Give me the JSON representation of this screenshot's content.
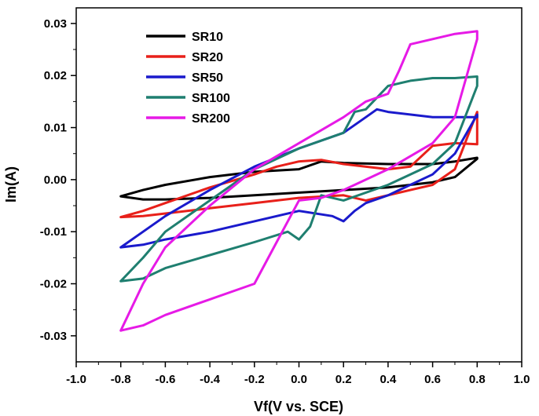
{
  "chart_data": {
    "type": "line",
    "title": "",
    "xlabel": "Vf(V vs. SCE)",
    "ylabel": "Im(A)",
    "xlim": [
      -1.0,
      1.0
    ],
    "ylim": [
      -0.035,
      0.033
    ],
    "x_ticks": [
      "-1.0",
      "-0.8",
      "-0.6",
      "-0.4",
      "-0.2",
      "0.0",
      "0.2",
      "0.4",
      "0.6",
      "0.8",
      "1.0"
    ],
    "y_ticks": [
      "0.03",
      "0.02",
      "0.01",
      "0.00",
      "-0.01",
      "-0.02",
      "-0.03"
    ],
    "grid": false,
    "legend_position": "top-left",
    "series": [
      {
        "name": "SR10",
        "color": "#000000",
        "points": [
          [
            -0.8,
            -0.0032
          ],
          [
            -0.7,
            -0.002
          ],
          [
            -0.6,
            -0.001
          ],
          [
            -0.4,
            0.0005
          ],
          [
            -0.2,
            0.0015
          ],
          [
            0.0,
            0.002
          ],
          [
            0.1,
            0.0035
          ],
          [
            0.2,
            0.0032
          ],
          [
            0.4,
            0.003
          ],
          [
            0.6,
            0.003
          ],
          [
            0.7,
            0.0035
          ],
          [
            0.8,
            0.0042
          ],
          [
            0.8,
            0.004
          ],
          [
            0.7,
            0.0005
          ],
          [
            0.6,
            -0.0005
          ],
          [
            0.4,
            -0.0015
          ],
          [
            0.2,
            -0.002
          ],
          [
            0.0,
            -0.0025
          ],
          [
            -0.2,
            -0.003
          ],
          [
            -0.4,
            -0.0035
          ],
          [
            -0.6,
            -0.0038
          ],
          [
            -0.7,
            -0.0038
          ],
          [
            -0.8,
            -0.0032
          ]
        ]
      },
      {
        "name": "SR20",
        "color": "#e8201a",
        "points": [
          [
            -0.8,
            -0.0072
          ],
          [
            -0.7,
            -0.006
          ],
          [
            -0.6,
            -0.0045
          ],
          [
            -0.4,
            -0.0015
          ],
          [
            -0.2,
            0.001
          ],
          [
            -0.1,
            0.0025
          ],
          [
            0.0,
            0.0035
          ],
          [
            0.1,
            0.0038
          ],
          [
            0.2,
            0.003
          ],
          [
            0.4,
            0.002
          ],
          [
            0.5,
            0.0025
          ],
          [
            0.6,
            0.0065
          ],
          [
            0.7,
            0.007
          ],
          [
            0.8,
            0.0068
          ],
          [
            0.8,
            0.013
          ],
          [
            0.7,
            0.002
          ],
          [
            0.6,
            -0.001
          ],
          [
            0.5,
            -0.002
          ],
          [
            0.3,
            -0.004
          ],
          [
            0.2,
            -0.003
          ],
          [
            0.0,
            -0.0035
          ],
          [
            -0.2,
            -0.0045
          ],
          [
            -0.4,
            -0.0055
          ],
          [
            -0.6,
            -0.0065
          ],
          [
            -0.7,
            -0.007
          ],
          [
            -0.8,
            -0.0072
          ]
        ]
      },
      {
        "name": "SR50",
        "color": "#1a1acc",
        "points": [
          [
            -0.8,
            -0.013
          ],
          [
            -0.7,
            -0.01
          ],
          [
            -0.6,
            -0.007
          ],
          [
            -0.4,
            -0.002
          ],
          [
            -0.2,
            0.0025
          ],
          [
            0.0,
            0.006
          ],
          [
            0.2,
            0.009
          ],
          [
            0.3,
            0.012
          ],
          [
            0.35,
            0.0135
          ],
          [
            0.4,
            0.013
          ],
          [
            0.6,
            0.012
          ],
          [
            0.8,
            0.012
          ],
          [
            0.8,
            0.0125
          ],
          [
            0.7,
            0.005
          ],
          [
            0.6,
            0.001
          ],
          [
            0.4,
            -0.003
          ],
          [
            0.3,
            -0.0045
          ],
          [
            0.25,
            -0.006
          ],
          [
            0.2,
            -0.008
          ],
          [
            0.15,
            -0.007
          ],
          [
            0.0,
            -0.006
          ],
          [
            -0.2,
            -0.008
          ],
          [
            -0.4,
            -0.01
          ],
          [
            -0.6,
            -0.0115
          ],
          [
            -0.7,
            -0.0125
          ],
          [
            -0.8,
            -0.013
          ]
        ]
      },
      {
        "name": "SR100",
        "color": "#1f7f70",
        "points": [
          [
            -0.8,
            -0.0195
          ],
          [
            -0.7,
            -0.015
          ],
          [
            -0.6,
            -0.01
          ],
          [
            -0.4,
            -0.004
          ],
          [
            -0.2,
            0.002
          ],
          [
            0.0,
            0.006
          ],
          [
            0.2,
            0.009
          ],
          [
            0.25,
            0.013
          ],
          [
            0.3,
            0.0135
          ],
          [
            0.4,
            0.018
          ],
          [
            0.5,
            0.019
          ],
          [
            0.6,
            0.0195
          ],
          [
            0.7,
            0.0195
          ],
          [
            0.8,
            0.0198
          ],
          [
            0.8,
            0.018
          ],
          [
            0.7,
            0.007
          ],
          [
            0.6,
            0.003
          ],
          [
            0.4,
            -0.001
          ],
          [
            0.2,
            -0.004
          ],
          [
            0.1,
            -0.003
          ],
          [
            0.05,
            -0.009
          ],
          [
            0.0,
            -0.0115
          ],
          [
            -0.05,
            -0.01
          ],
          [
            -0.2,
            -0.012
          ],
          [
            -0.4,
            -0.0145
          ],
          [
            -0.6,
            -0.017
          ],
          [
            -0.7,
            -0.019
          ],
          [
            -0.8,
            -0.0195
          ]
        ]
      },
      {
        "name": "SR200",
        "color": "#e61ae6",
        "points": [
          [
            -0.8,
            -0.029
          ],
          [
            -0.7,
            -0.02
          ],
          [
            -0.6,
            -0.013
          ],
          [
            -0.4,
            -0.005
          ],
          [
            -0.2,
            0.002
          ],
          [
            0.0,
            0.007
          ],
          [
            0.2,
            0.012
          ],
          [
            0.3,
            0.015
          ],
          [
            0.4,
            0.0165
          ],
          [
            0.45,
            0.021
          ],
          [
            0.5,
            0.026
          ],
          [
            0.6,
            0.027
          ],
          [
            0.7,
            0.028
          ],
          [
            0.8,
            0.0285
          ],
          [
            0.8,
            0.027
          ],
          [
            0.7,
            0.012
          ],
          [
            0.6,
            0.007
          ],
          [
            0.4,
            0.002
          ],
          [
            0.2,
            -0.002
          ],
          [
            0.1,
            -0.0035
          ],
          [
            0.0,
            -0.004
          ],
          [
            -0.1,
            -0.012
          ],
          [
            -0.2,
            -0.02
          ],
          [
            -0.4,
            -0.023
          ],
          [
            -0.6,
            -0.026
          ],
          [
            -0.7,
            -0.028
          ],
          [
            -0.8,
            -0.029
          ]
        ]
      }
    ]
  }
}
